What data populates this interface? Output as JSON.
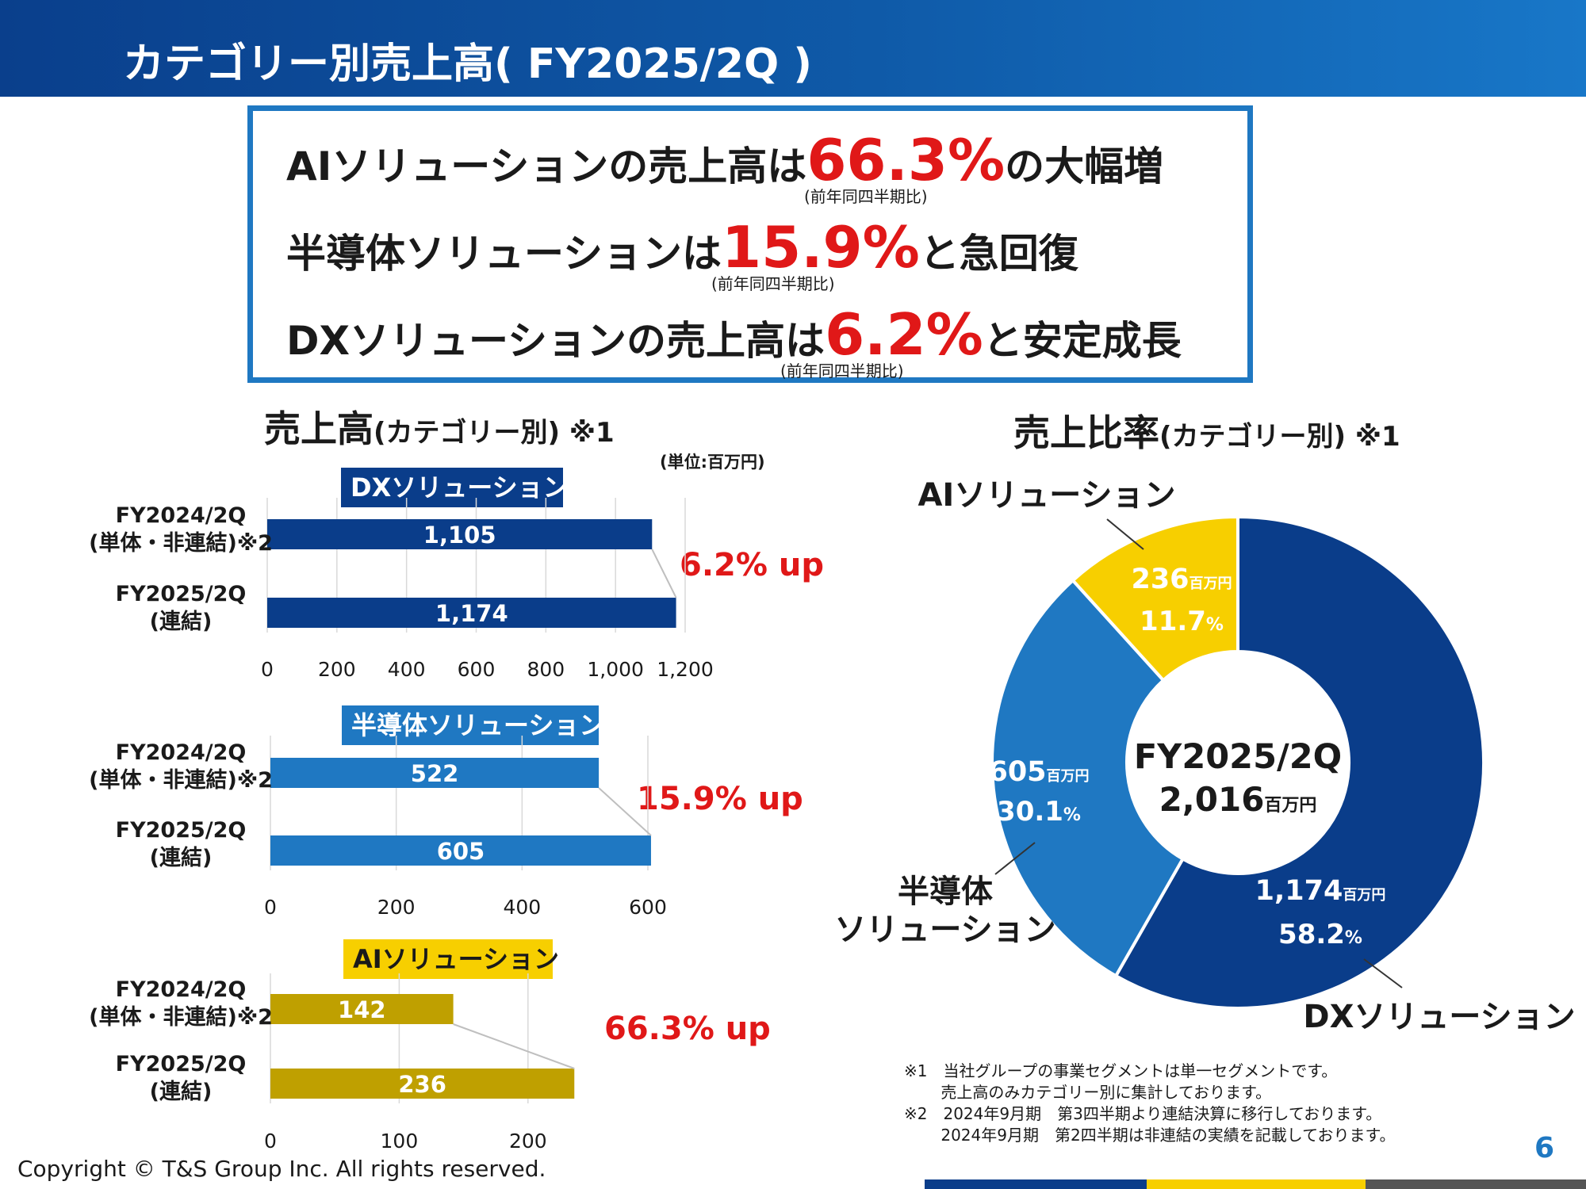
{
  "slide": {
    "title": "カテゴリー別売上高( FY2025/2Q )",
    "page_number": "6",
    "copyright": "Copyright © T&S Group Inc. All rights reserved."
  },
  "headline": {
    "line1": {
      "pre": "AIソリューションの売上高は",
      "pct": "66.3%",
      "post": "の大幅増",
      "note": "(前年同四半期比)"
    },
    "line2": {
      "pre": "半導体ソリューションは",
      "pct": "15.9%",
      "post": "と急回復",
      "note": "(前年同四半期比)"
    },
    "line3": {
      "pre": "DXソリューションの売上高は",
      "pct": "6.2%",
      "post": "と安定成長",
      "note": "(前年同四半期比)"
    }
  },
  "left_section": {
    "title": "売上高",
    "title_sub": "(カテゴリー別) ※1",
    "unit": "(単位:百万円)"
  },
  "right_section": {
    "title": "売上比率",
    "title_sub": "(カテゴリー別) ※1"
  },
  "footnotes": "※1　当社グループの事業セグメントは単一セグメントです。\n　　 売上高のみカテゴリー別に集計しております。\n※2　2024年9月期　第3四半期より連結決算に移行しております。\n　　 2024年9月期　第2四半期は非連結の実績を記載しております。",
  "colors": {
    "dx": "#0a3d8a",
    "semi": "#1f78c2",
    "ai_bar": "#bfa000",
    "ai_pie": "#f7cf00",
    "growth": "#e01818"
  },
  "chart_data": [
    {
      "type": "bar",
      "orientation": "horizontal",
      "title": "DXソリューション",
      "categories": [
        "FY2024/2Q\n(単体・非連結)※2",
        "FY2025/2Q\n(連結)"
      ],
      "values": [
        1105,
        1174
      ],
      "value_labels": [
        "1,105",
        "1,174"
      ],
      "xlim": [
        0,
        1200
      ],
      "xticks": [
        0,
        200,
        400,
        600,
        800,
        1000,
        1200
      ],
      "xtick_labels": [
        "0",
        "200",
        "400",
        "600",
        "800",
        "1,000",
        "1,200"
      ],
      "annotation": "6.2% up",
      "grid": true
    },
    {
      "type": "bar",
      "orientation": "horizontal",
      "title": "半導体ソリューション",
      "categories": [
        "FY2024/2Q\n(単体・非連結)※2",
        "FY2025/2Q\n(連結)"
      ],
      "values": [
        522,
        605
      ],
      "value_labels": [
        "522",
        "605"
      ],
      "xlim": [
        0,
        600
      ],
      "xticks": [
        0,
        200,
        400,
        600
      ],
      "xtick_labels": [
        "0",
        "200",
        "400",
        "600"
      ],
      "annotation": "15.9% up",
      "grid": true
    },
    {
      "type": "bar",
      "orientation": "horizontal",
      "title": "AIソリューション",
      "categories": [
        "FY2024/2Q\n(単体・非連結)※2",
        "FY2025/2Q\n(連結)"
      ],
      "values": [
        142,
        236
      ],
      "value_labels": [
        "142",
        "236"
      ],
      "xlim": [
        0,
        250
      ],
      "xticks": [
        0,
        100,
        200
      ],
      "xtick_labels": [
        "0",
        "100",
        "200"
      ],
      "annotation": "66.3% up",
      "grid": true
    },
    {
      "type": "pie",
      "style": "donut",
      "center_label": "FY2025/2Q",
      "center_value": "2,016",
      "center_unit": "百万円",
      "slices": [
        {
          "name": "DXソリューション",
          "value": 1174,
          "value_label": "1,174",
          "unit": "百万円",
          "percent": "58.2",
          "pct_unit": "%"
        },
        {
          "name": "半導体\nソリューション",
          "value": 605,
          "value_label": "605",
          "unit": "百万円",
          "percent": "30.1",
          "pct_unit": "%"
        },
        {
          "name": "AIソリューション",
          "value": 236,
          "value_label": "236",
          "unit": "百万円",
          "percent": "11.7",
          "pct_unit": "%"
        }
      ]
    }
  ]
}
